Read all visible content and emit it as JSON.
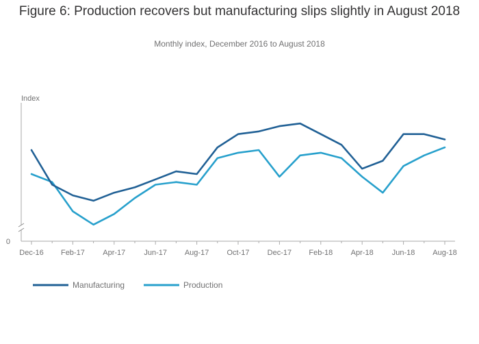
{
  "title": "Figure 6: Production recovers but manufacturing slips slightly in August 2018",
  "subtitle": "Monthly index, December 2016 to August 2018",
  "chart_data": {
    "type": "line",
    "title": "Figure 6: Production recovers but manufacturing slips slightly in August 2018",
    "subtitle": "Monthly index, December 2016 to August 2018",
    "ylabel": "Index",
    "y_axis_visible_tick": "0",
    "y_axis_break": true,
    "x": [
      "Dec-16",
      "Jan-17",
      "Feb-17",
      "Mar-17",
      "Apr-17",
      "May-17",
      "Jun-17",
      "Jul-17",
      "Aug-17",
      "Sep-17",
      "Oct-17",
      "Nov-17",
      "Dec-17",
      "Jan-18",
      "Feb-18",
      "Mar-18",
      "Apr-18",
      "May-18",
      "Jun-18",
      "Jul-18",
      "Aug-18"
    ],
    "x_tick_labels": [
      "Dec-16",
      "Feb-17",
      "Apr-17",
      "Jun-17",
      "Aug-17",
      "Oct-17",
      "Dec-17",
      "Feb-18",
      "Apr-18",
      "Jun-18",
      "Aug-18"
    ],
    "ylim": [
      97.5,
      104.5
    ],
    "series": [
      {
        "name": "Manufacturing",
        "color": "#206095",
        "values": [
          101.9,
          100.6,
          100.2,
          100.0,
          100.3,
          100.5,
          100.8,
          101.1,
          101.0,
          102.0,
          102.5,
          102.6,
          102.8,
          102.9,
          102.5,
          102.1,
          101.2,
          101.5,
          102.5,
          102.5,
          102.3
        ]
      },
      {
        "name": "Production",
        "color": "#27a0cc",
        "values": [
          101.0,
          100.7,
          99.6,
          99.1,
          99.5,
          100.1,
          100.6,
          100.7,
          100.6,
          101.6,
          101.8,
          101.9,
          100.9,
          101.7,
          101.8,
          101.6,
          100.9,
          100.3,
          101.3,
          101.7,
          102.0
        ]
      }
    ],
    "legend_position": "bottom-left",
    "grid": false
  }
}
